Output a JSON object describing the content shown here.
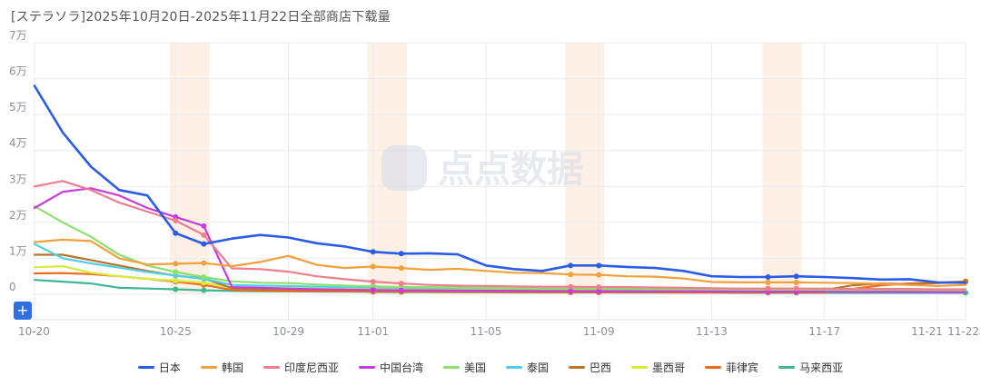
{
  "title": "[ステラソラ]2025年10月20日-2025年11月22日全部商店下载量",
  "watermark": "点点数据",
  "plus_label": "+",
  "colors": {
    "grid": "#e9ebf0",
    "weekend": "#fdf1e6",
    "axis_text": "#8a8f99"
  },
  "chart_data": {
    "type": "line",
    "title": "[ステラソラ]2025年10月20日-2025年11月22日全部商店下载量",
    "x": [
      "10-20",
      "10-21",
      "10-22",
      "10-23",
      "10-24",
      "10-25",
      "10-26",
      "10-27",
      "10-28",
      "10-29",
      "10-30",
      "10-31",
      "11-01",
      "11-02",
      "11-03",
      "11-04",
      "11-05",
      "11-06",
      "11-07",
      "11-08",
      "11-09",
      "11-10",
      "11-11",
      "11-12",
      "11-13",
      "11-14",
      "11-15",
      "11-16",
      "11-17",
      "11-18",
      "11-19",
      "11-20",
      "11-21",
      "11-22"
    ],
    "x_tick_labels": [
      "10-20",
      "",
      "",
      "",
      "",
      "10-25",
      "",
      "",
      "",
      "10-29",
      "",
      "",
      "11-01",
      "",
      "",
      "",
      "11-05",
      "",
      "",
      "",
      "11-09",
      "",
      "",
      "",
      "11-13",
      "",
      "",
      "",
      "11-17",
      "",
      "",
      "",
      "11-21",
      "11-22"
    ],
    "y_ticks": [
      0,
      10000,
      20000,
      30000,
      40000,
      50000,
      60000,
      70000
    ],
    "y_tick_labels": [
      "0",
      "1万",
      "2万",
      "3万",
      "4万",
      "5万",
      "6万",
      "7万"
    ],
    "ylim": [
      0,
      70000
    ],
    "shaded_ranges": [
      [
        "10-25",
        "10-26"
      ],
      [
        "11-01",
        "11-02"
      ],
      [
        "11-08",
        "11-09"
      ],
      [
        "11-15",
        "11-16"
      ]
    ],
    "legend_position": "bottom",
    "series": [
      {
        "name": "日本",
        "color": "#2b5ce6",
        "width": 2.6,
        "values": [
          58000,
          45000,
          35500,
          29000,
          27500,
          17000,
          14000,
          15500,
          16500,
          15800,
          14200,
          13300,
          11800,
          11300,
          11400,
          11100,
          8000,
          7000,
          6500,
          8000,
          8000,
          7600,
          7300,
          6500,
          5000,
          4800,
          4800,
          5000,
          4800,
          4500,
          4100,
          4200,
          3300,
          3200
        ],
        "markers": [
          5,
          6,
          12,
          13,
          19,
          20,
          26,
          27
        ]
      },
      {
        "name": "韩国",
        "color": "#f0a03c",
        "width": 2.2,
        "values": [
          14500,
          15200,
          14800,
          10000,
          8300,
          8500,
          8700,
          7800,
          9000,
          10700,
          8200,
          7300,
          7700,
          7300,
          6800,
          7100,
          6500,
          6000,
          5900,
          5500,
          5400,
          5000,
          4900,
          4400,
          3400,
          3300,
          3300,
          3300,
          3200,
          3100,
          2900,
          2600,
          2300,
          2600
        ],
        "markers": [
          5,
          6,
          12,
          13,
          19,
          20,
          26,
          27
        ]
      },
      {
        "name": "印度尼西亚",
        "color": "#f07d8c",
        "width": 2.2,
        "values": [
          30000,
          31500,
          29000,
          25500,
          23000,
          20500,
          16500,
          7200,
          7000,
          6300,
          5000,
          4200,
          3500,
          3000,
          2600,
          2400,
          2300,
          2200,
          2100,
          2100,
          2000,
          2000,
          1900,
          1800,
          1700,
          1600,
          1600,
          1600,
          1600,
          1500,
          1500,
          1500,
          1400,
          1400
        ],
        "markers": [
          5,
          6,
          12,
          13,
          19,
          20,
          26,
          27
        ]
      },
      {
        "name": "中国台湾",
        "color": "#c93adf",
        "width": 2.2,
        "values": [
          24000,
          28500,
          29500,
          27500,
          24000,
          21500,
          19000,
          2000,
          1800,
          1600,
          1400,
          1300,
          1200,
          1100,
          1100,
          1000,
          1000,
          950,
          900,
          900,
          850,
          850,
          800,
          800,
          750,
          750,
          700,
          700,
          700,
          650,
          650,
          650,
          600,
          600
        ],
        "markers": [
          5,
          6,
          12,
          13,
          19,
          20,
          26,
          27
        ]
      },
      {
        "name": "美国",
        "color": "#8ce070",
        "width": 2.2,
        "values": [
          24500,
          20000,
          16000,
          11000,
          8000,
          6200,
          4800,
          3600,
          3200,
          3100,
          2700,
          2400,
          2200,
          2000,
          2000,
          1900,
          1800,
          1700,
          1600,
          1600,
          1500,
          1500,
          1500,
          1400,
          1400,
          1300,
          1300,
          1300,
          1300,
          1300,
          1200,
          1200,
          1200,
          1200
        ],
        "markers": [
          5,
          6,
          12,
          13,
          19,
          20,
          26,
          27
        ]
      },
      {
        "name": "泰国",
        "color": "#4fd0e6",
        "width": 2.2,
        "values": [
          14000,
          10000,
          8600,
          7400,
          6200,
          5200,
          4300,
          2600,
          2400,
          2300,
          2100,
          2000,
          1900,
          1800,
          1800,
          1700,
          1700,
          1600,
          1600,
          1600,
          1500,
          1500,
          1500,
          1400,
          1400,
          1400,
          1400,
          1300,
          1300,
          1300,
          1300,
          1300,
          1300,
          1300
        ],
        "markers": [
          5,
          6,
          12,
          13,
          19,
          20,
          26,
          27
        ]
      },
      {
        "name": "巴西",
        "color": "#b8742a",
        "width": 2.2,
        "values": [
          11000,
          11000,
          9500,
          8000,
          6500,
          5200,
          4400,
          1700,
          1500,
          1400,
          1300,
          1200,
          1100,
          1000,
          1000,
          950,
          900,
          900,
          850,
          850,
          800,
          800,
          800,
          800,
          800,
          750,
          750,
          750,
          1200,
          2500,
          3000,
          2800,
          3100,
          3500
        ],
        "markers": [
          5,
          6,
          12,
          13,
          19,
          20,
          26,
          27,
          33
        ]
      },
      {
        "name": "墨西哥",
        "color": "#d9eb3a",
        "width": 2.2,
        "values": [
          7500,
          7800,
          6000,
          5000,
          4300,
          3800,
          3200,
          1900,
          1800,
          1700,
          1600,
          1500,
          1500,
          1400,
          1400,
          1300,
          1300,
          1300,
          1200,
          1200,
          1200,
          1200,
          1100,
          1100,
          1100,
          1100,
          1000,
          1000,
          1000,
          1000,
          1000,
          1000,
          1000,
          1000
        ],
        "markers": [
          5,
          6,
          12,
          13,
          19,
          20,
          26,
          27
        ]
      },
      {
        "name": "菲律宾",
        "color": "#ee6a1a",
        "width": 2.2,
        "values": [
          5800,
          5900,
          5600,
          5000,
          4300,
          3500,
          2600,
          1200,
          1000,
          900,
          850,
          800,
          750,
          700,
          700,
          650,
          650,
          600,
          600,
          600,
          550,
          550,
          550,
          500,
          500,
          500,
          500,
          500,
          500,
          1500,
          2500,
          3000,
          3200,
          3600
        ],
        "markers": [
          5,
          6,
          12,
          13,
          19,
          20,
          26,
          27,
          33
        ]
      },
      {
        "name": "马来西亚",
        "color": "#3cb899",
        "width": 2.2,
        "values": [
          4000,
          3500,
          3000,
          1800,
          1600,
          1400,
          1100,
          900,
          850,
          800,
          750,
          700,
          650,
          600,
          600,
          550,
          550,
          500,
          500,
          500,
          500,
          450,
          450,
          450,
          450,
          400,
          400,
          400,
          400,
          400,
          400,
          400,
          400,
          400
        ],
        "markers": [
          5,
          6,
          12,
          13,
          19,
          20,
          26,
          27,
          33
        ]
      }
    ]
  }
}
